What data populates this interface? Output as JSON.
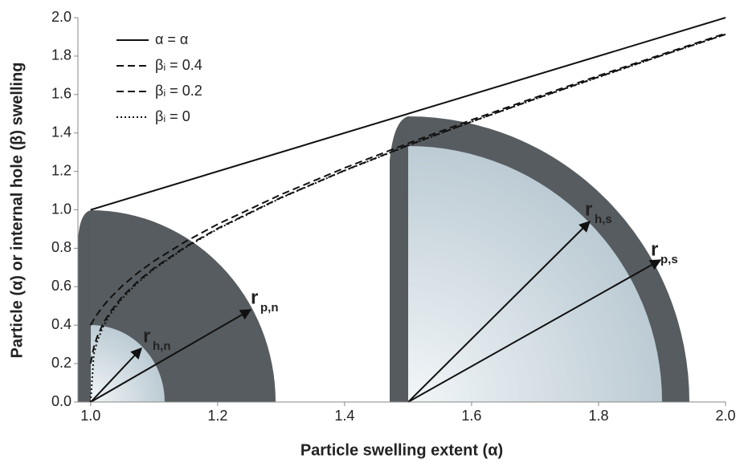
{
  "chart_data": {
    "type": "line",
    "xlabel": "Particle swelling extent (α)",
    "ylabel": "Particle (α) or internal hole (β) swelling",
    "xlim": [
      0.98,
      2.0
    ],
    "ylim": [
      0,
      2.0
    ],
    "xticks": [
      {
        "value": 1.0,
        "label": "1.0"
      },
      1.2,
      1.4,
      1.6,
      1.8,
      {
        "value": 2.0,
        "label": "2.0"
      }
    ],
    "yticks": [
      {
        "value": 0,
        "label": "0.0"
      },
      0.2,
      0.4,
      0.6,
      0.8,
      {
        "value": 1.0,
        "label": "1.0"
      },
      1.2,
      1.4,
      1.6,
      1.8,
      {
        "value": 2.0,
        "label": "2.0"
      }
    ],
    "legend": "upper left",
    "series": [
      {
        "name": "α = α",
        "color": "#111111",
        "linestyle": "solid",
        "x": [
          1.0,
          2.0
        ],
        "values": [
          1.0,
          2.0
        ]
      },
      {
        "name": "βᵢ = 0.4",
        "color": "#111111",
        "linestyle": "dashed",
        "x": [
          1.0,
          1.005,
          1.01,
          1.02,
          1.03,
          1.05,
          1.075,
          1.1,
          1.15,
          1.2,
          1.3,
          1.4,
          1.5,
          1.6,
          1.7,
          1.8,
          1.9,
          2.0
        ],
        "values": [
          0.4,
          0.429,
          0.455,
          0.5,
          0.539,
          0.605,
          0.674,
          0.734,
          0.836,
          0.925,
          1.08,
          1.218,
          1.346,
          1.468,
          1.584,
          1.698,
          1.809,
          1.918
        ]
      },
      {
        "name": "βᵢ = 0.2",
        "color": "#111111",
        "linestyle": "dashed",
        "x": [
          1.0,
          1.005,
          1.01,
          1.02,
          1.03,
          1.05,
          1.075,
          1.1,
          1.15,
          1.2,
          1.3,
          1.4,
          1.5,
          1.6,
          1.7,
          1.8,
          1.9,
          2.0
        ],
        "values": [
          0.2,
          0.285,
          0.337,
          0.411,
          0.465,
          0.549,
          0.63,
          0.697,
          0.809,
          0.903,
          1.064,
          1.205,
          1.336,
          1.459,
          1.577,
          1.692,
          1.804,
          1.913
        ]
      },
      {
        "name": "βᵢ = 0",
        "color": "#111111",
        "linestyle": "dotted",
        "x": [
          1.0,
          1.005,
          1.01,
          1.02,
          1.03,
          1.05,
          1.075,
          1.1,
          1.15,
          1.2,
          1.3,
          1.4,
          1.5,
          1.6,
          1.7,
          1.8,
          1.9,
          2.0
        ],
        "values": [
          0,
          0.247,
          0.312,
          0.394,
          0.452,
          0.54,
          0.623,
          0.692,
          0.805,
          0.9,
          1.062,
          1.204,
          1.334,
          1.458,
          1.576,
          1.69,
          1.803,
          1.913
        ]
      }
    ],
    "annotations": [
      {
        "text": "r",
        "sub": "h,n"
      },
      {
        "text": "r",
        "sub": "p,n"
      },
      {
        "text": "r",
        "sub": "h,s"
      },
      {
        "text": "r",
        "sub": "p,s"
      }
    ]
  }
}
